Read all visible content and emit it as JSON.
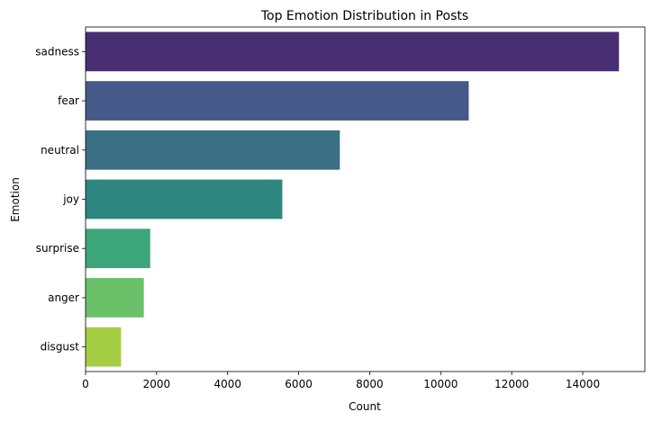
{
  "chart_data": {
    "type": "bar",
    "orientation": "horizontal",
    "title": "Top Emotion Distribution in Posts",
    "xlabel": "Count",
    "ylabel": "Emotion",
    "categories": [
      "sadness",
      "fear",
      "neutral",
      "joy",
      "surprise",
      "anger",
      "disgust"
    ],
    "values": [
      15020,
      10790,
      7160,
      5540,
      1820,
      1640,
      1000
    ],
    "colors": [
      "#482f73",
      "#455a88",
      "#3a6f85",
      "#2d8780",
      "#3ca57a",
      "#6bc06a",
      "#a5cd44"
    ],
    "xlim": [
      0,
      15750
    ],
    "xticks": [
      0,
      2000,
      4000,
      6000,
      8000,
      10000,
      12000,
      14000
    ],
    "grid": false,
    "legend": "none"
  }
}
